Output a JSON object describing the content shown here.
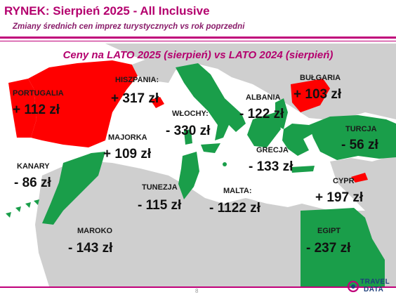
{
  "header": {
    "title": "RYNEK: Sierpień 2025 - All Inclusive",
    "subtitle": "Zmiany średnich cen imprez turystycznych vs rok poprzedni"
  },
  "map_title": "Ceny na LATO 2025 (sierpień) vs  LATO 2024 (sierpień)",
  "destinations": {
    "portugalia": {
      "name": "PORTUGALIA",
      "value": "+ 112 zł",
      "color": "#ff0000"
    },
    "hiszpania": {
      "name": "HISZPANIA:",
      "value": "+ 317 zł",
      "color": "#ff0000"
    },
    "majorka": {
      "name": "MAJORKA",
      "value": "+ 109 zł",
      "color": "#ff0000"
    },
    "kanary": {
      "name": "KANARY",
      "value": "- 86 zł",
      "color": "#1a9e4a"
    },
    "wlochy": {
      "name": "WŁOCHY:",
      "value": "- 330 zł",
      "color": "#1a9e4a"
    },
    "albania": {
      "name": "ALBANIA",
      "value": "- 122 zł",
      "color": "#1a9e4a"
    },
    "bulgaria": {
      "name": "BUŁGARIA",
      "value": "+ 103 zł",
      "color": "#ff0000"
    },
    "turcja": {
      "name": "TURCJA",
      "value": "- 56 zł",
      "color": "#1a9e4a"
    },
    "grecja": {
      "name": "GRECJA",
      "value": "- 133 zł",
      "color": "#1a9e4a"
    },
    "tunezja": {
      "name": "TUNEZJA",
      "value": "- 115 zł",
      "color": "#1a9e4a"
    },
    "malta": {
      "name": "MALTA:",
      "value": "- 1122 zł",
      "color": "#1a9e4a"
    },
    "cypr": {
      "name": "CYPR",
      "value": "+ 197 zł",
      "color": "#ff0000"
    },
    "maroko": {
      "name": "MAROKO",
      "value": "- 143 zł",
      "color": "#1a9e4a"
    },
    "egipt": {
      "name": "EGIPT",
      "value": "- 237 zł",
      "color": "#1a9e4a"
    }
  },
  "footer": {
    "page_number": "8",
    "logo_line1": "TRAVEL",
    "logo_line2": "DATA"
  },
  "colors": {
    "accent": "#c0007a",
    "increase": "#ff0000",
    "decrease": "#1a9e4a",
    "land": "#cfcfcf"
  }
}
